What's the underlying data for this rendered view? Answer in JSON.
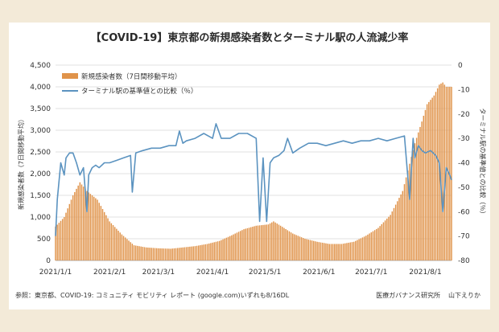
{
  "chart_data": {
    "type": "bar+line",
    "title": "【COVID-19】東京都の新規感染者数とターミナル駅の人流減少率",
    "xlabel": "",
    "ylabel_left": "新規感染者数（7日間移動平均）",
    "ylabel_right": "ターミナル駅の基準値との比較（％）",
    "ylim_left": [
      0,
      4500
    ],
    "ylim_right": [
      -80,
      0
    ],
    "yticks_left": [
      "0",
      "500",
      "1,000",
      "1,500",
      "2,000",
      "2,500",
      "3,000",
      "3,500",
      "4,000",
      "4,500"
    ],
    "yticks_right": [
      "0",
      "-10",
      "-20",
      "-30",
      "-40",
      "-50",
      "-60",
      "-70",
      "-80"
    ],
    "x_range": [
      "2021-01-01",
      "2021-08-16"
    ],
    "xticks": [
      "2021/1/1",
      "2021/2/1",
      "2021/3/1",
      "2021/4/1",
      "2021/5/1",
      "2021/6/1",
      "2021/7/1",
      "2021/8/1"
    ],
    "legend": [
      "新規感染者数（7日間移動平均）",
      "ターミナル駅の基準値との比較（％）"
    ],
    "legend_position": "top-left",
    "series": [
      {
        "name": "新規感染者数（7日間移動平均）",
        "type": "bar",
        "axis": "left",
        "color": "#e0934a",
        "x_day_offsets": [
          0,
          5,
          10,
          14,
          18,
          24,
          31,
          38,
          45,
          52,
          59,
          66,
          73,
          80,
          87,
          94,
          101,
          108,
          115,
          122,
          125,
          129,
          136,
          143,
          150,
          157,
          164,
          171,
          178,
          185,
          192,
          199,
          206,
          210,
          213,
          217,
          220,
          222,
          224,
          227
        ],
        "values": [
          780,
          1000,
          1500,
          1800,
          1600,
          1400,
          900,
          600,
          350,
          300,
          280,
          270,
          300,
          330,
          380,
          450,
          580,
          720,
          800,
          830,
          900,
          800,
          620,
          500,
          430,
          380,
          380,
          430,
          570,
          750,
          1050,
          1600,
          2700,
          3200,
          3600,
          3800,
          4050,
          4100,
          4000,
          4000
        ]
      },
      {
        "name": "ターミナル駅の基準値との比較（％）",
        "type": "line",
        "axis": "right",
        "color": "#5b93c0",
        "x_day_offsets": [
          0,
          1,
          3,
          5,
          6,
          8,
          10,
          12,
          14,
          16,
          18,
          19,
          21,
          23,
          25,
          28,
          31,
          35,
          39,
          43,
          44,
          46,
          50,
          55,
          60,
          65,
          69,
          71,
          73,
          75,
          80,
          85,
          90,
          92,
          95,
          100,
          105,
          110,
          115,
          117,
          119,
          121,
          123,
          125,
          128,
          131,
          133,
          136,
          140,
          145,
          150,
          155,
          160,
          165,
          170,
          175,
          180,
          185,
          190,
          195,
          200,
          203,
          205,
          206,
          208,
          210,
          212,
          215,
          218,
          220,
          222,
          224,
          226,
          227
        ],
        "values": [
          -70,
          -55,
          -40,
          -45,
          -38,
          -36,
          -36,
          -40,
          -45,
          -42,
          -60,
          -45,
          -42,
          -41,
          -42,
          -40,
          -40,
          -39,
          -38,
          -37,
          -52,
          -36,
          -35,
          -34,
          -34,
          -33,
          -33,
          -27,
          -32,
          -31,
          -30,
          -28,
          -30,
          -24,
          -30,
          -30,
          -28,
          -28,
          -30,
          -64,
          -38,
          -64,
          -40,
          -38,
          -37,
          -35,
          -30,
          -36,
          -34,
          -32,
          -32,
          -33,
          -32,
          -31,
          -32,
          -31,
          -31,
          -30,
          -31,
          -30,
          -29,
          -55,
          -30,
          -38,
          -33,
          -35,
          -36,
          -35,
          -37,
          -40,
          -60,
          -42,
          -45,
          -47
        ]
      }
    ]
  },
  "footer": {
    "source": "参照：東京都、COVID-19: コミュニティ モビリティ レポート (google.com)いずれも8/16DL",
    "org": "医療ガバナンス研究所",
    "author": "山下えりか"
  }
}
